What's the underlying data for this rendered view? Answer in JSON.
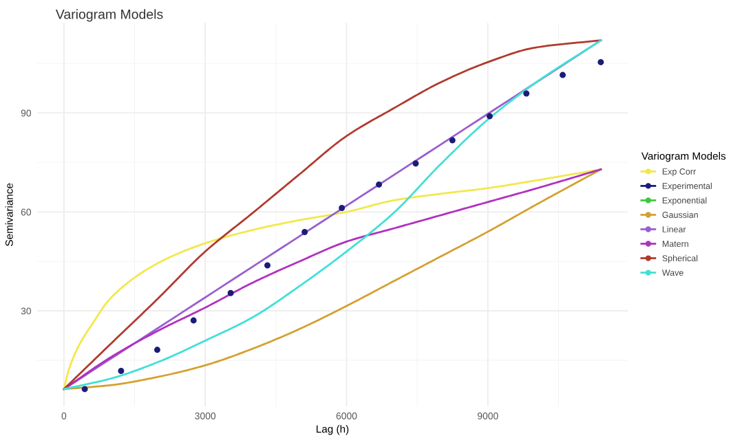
{
  "chart_data": {
    "type": "line",
    "title": "Variogram Models",
    "xlabel": "Lag (h)",
    "ylabel": "Semivariance",
    "legend_title": "Variogram Models",
    "xlim": [
      -570,
      11970
    ],
    "ylim": [
      1,
      117.3
    ],
    "xticks": [
      0,
      3000,
      6000,
      9000
    ],
    "yticks": [
      30,
      60,
      90
    ],
    "grid": true,
    "legend": "right",
    "line_style": "solid",
    "series": [
      {
        "name": "Exp Corr",
        "color": "#f2e84a",
        "x": [
          0,
          100,
          300,
          600,
          1000,
          2000,
          3000,
          4000,
          5000,
          6000,
          7000,
          8000,
          9000,
          10000,
          11400
        ],
        "values": [
          6.3,
          12,
          19,
          26,
          34,
          44.5,
          50.5,
          54.5,
          57.5,
          60,
          63.5,
          65.5,
          67.2,
          69.5,
          72.9
        ]
      },
      {
        "name": "Experimental",
        "color": "#1c1c78",
        "type": "scatter",
        "marker": "circle",
        "x": [
          442,
          1213,
          1981,
          2752,
          3540,
          4320,
          5111,
          5900,
          6688,
          7468,
          8248,
          9039,
          9818,
          10589,
          11398
        ],
        "values": [
          6.3,
          11.8,
          18.2,
          27.1,
          35.4,
          43.8,
          53.9,
          61.2,
          68.3,
          74.7,
          81.7,
          89.0,
          95.9,
          101.5,
          105.4
        ]
      },
      {
        "name": "Exponential",
        "color": "#3ec83e"
      },
      {
        "name": "Gaussian",
        "color": "#d4a030",
        "x": [
          0,
          1000,
          2000,
          3000,
          4000,
          5000,
          6000,
          7000,
          8000,
          9000,
          10000,
          11400
        ],
        "values": [
          6.3,
          7.5,
          10,
          13.5,
          18.5,
          24.5,
          31.5,
          39,
          46.5,
          54,
          62,
          72.9
        ]
      },
      {
        "name": "Linear",
        "color": "#9a5fcf",
        "x": [
          0,
          5700,
          11400
        ],
        "values": [
          6.3,
          59.1,
          112
        ]
      },
      {
        "name": "Matern",
        "color": "#b030c0",
        "x": [
          0,
          1000,
          2000,
          3000,
          4000,
          5000,
          6000,
          7000,
          8000,
          9000,
          10000,
          11400
        ],
        "values": [
          6.3,
          16,
          24,
          31,
          38.5,
          45,
          51,
          55,
          59,
          63,
          67,
          72.9
        ]
      },
      {
        "name": "Spherical",
        "color": "#b03a2e",
        "x": [
          0,
          1000,
          2000,
          3000,
          4000,
          5000,
          6000,
          7000,
          8000,
          9000,
          10000,
          11400
        ],
        "values": [
          6.3,
          20.1,
          33.8,
          48,
          59.6,
          71.4,
          83,
          91.4,
          99.3,
          105.4,
          109.8,
          112
        ]
      },
      {
        "name": "Wave",
        "color": "#40e0d8",
        "x": [
          0,
          1000,
          2000,
          3000,
          4000,
          5000,
          6000,
          7000,
          8000,
          9000,
          10000,
          11400
        ],
        "values": [
          6.3,
          9.5,
          14.5,
          21,
          28,
          37.5,
          48,
          59.7,
          74.5,
          88,
          99,
          112
        ]
      }
    ]
  }
}
